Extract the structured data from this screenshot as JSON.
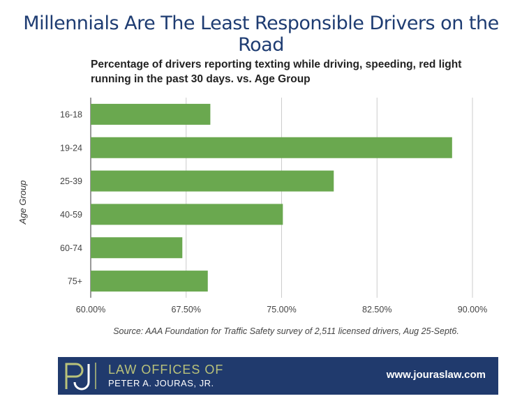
{
  "headline": "Millennials Are The Least Responsible Drivers on the Road",
  "source": "Source: AAA Foundation for Traffic Safety survey of 2,511 licensed drivers, Aug 25-Sept6.",
  "footer": {
    "firm_line1": "LAW OFFICES OF",
    "firm_line2": "PETER A. JOURAS, JR.",
    "website": "www.jouraslaw.com",
    "logo_letters": "PJ"
  },
  "colors": {
    "headline": "#1e3c72",
    "bar": "#6aa84f",
    "grid": "#cccccc",
    "footer_bg": "#203a6d",
    "logo_accent": "#b9c27a"
  },
  "chart_data": {
    "type": "bar",
    "orientation": "horizontal",
    "title": "Percentage of drivers reporting texting while driving, speeding, red light running in the past 30 days. vs. Age Group",
    "ylabel": "Age Group",
    "xlabel": "",
    "categories": [
      "16-18",
      "19-24",
      "25-39",
      "40-59",
      "60-74",
      "75+"
    ],
    "values": [
      69.4,
      88.4,
      79.1,
      75.1,
      67.2,
      69.2
    ],
    "xlim": [
      60,
      90
    ],
    "xticks": [
      60,
      67.5,
      75,
      82.5,
      90
    ],
    "xtick_labels": [
      "60.00%",
      "67.50%",
      "75.00%",
      "82.50%",
      "90.00%"
    ],
    "grid": true
  }
}
